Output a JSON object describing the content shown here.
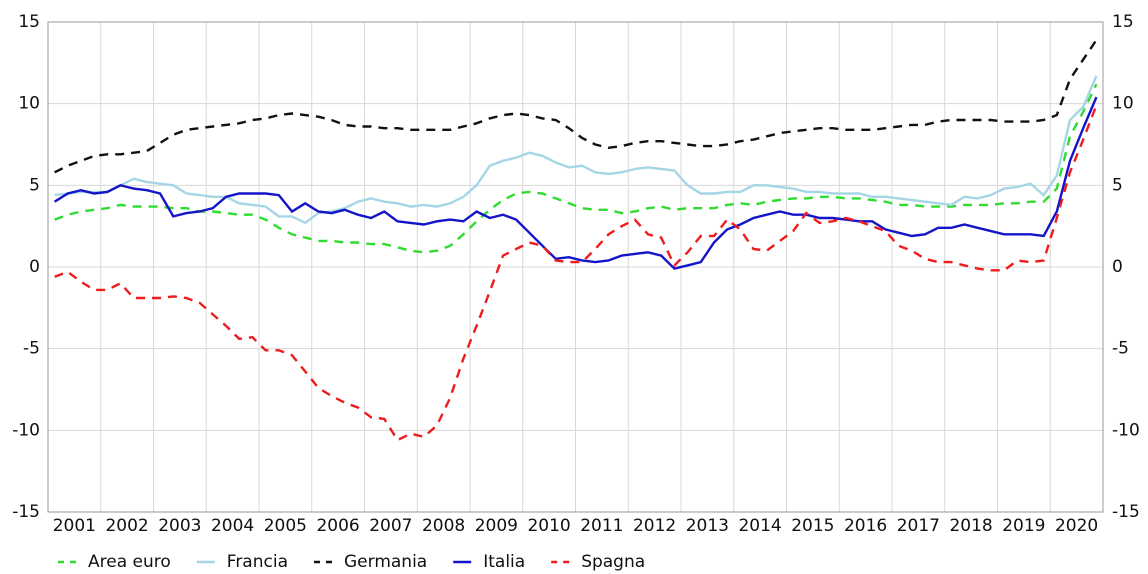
{
  "chart_data": {
    "type": "line",
    "categories": [
      null,
      "2001",
      null,
      null,
      null,
      "2002",
      null,
      null,
      null,
      "2003",
      null,
      null,
      null,
      "2004",
      null,
      null,
      null,
      "2005",
      null,
      null,
      null,
      "2006",
      null,
      null,
      null,
      "2007",
      null,
      null,
      null,
      "2008",
      null,
      null,
      null,
      "2009",
      null,
      null,
      null,
      "2010",
      null,
      null,
      null,
      "2011",
      null,
      null,
      null,
      "2012",
      null,
      null,
      null,
      "2013",
      null,
      null,
      null,
      "2014",
      null,
      null,
      null,
      "2015",
      null,
      null,
      null,
      "2016",
      null,
      null,
      null,
      "2017",
      null,
      null,
      null,
      "2018",
      null,
      null,
      null,
      "2019",
      null,
      null,
      null,
      "2020",
      null,
      null
    ],
    "series": [
      {
        "name": "Area euro",
        "color": "#2fdc2f",
        "dashed": true,
        "values": [
          2.9,
          3.2,
          3.4,
          3.5,
          3.6,
          3.8,
          3.7,
          3.7,
          3.7,
          3.6,
          3.6,
          3.4,
          3.4,
          3.3,
          3.2,
          3.2,
          2.9,
          2.4,
          2.0,
          1.8,
          1.6,
          1.6,
          1.5,
          1.5,
          1.4,
          1.4,
          1.2,
          1.0,
          0.9,
          1.0,
          1.3,
          2.0,
          2.8,
          3.5,
          4.1,
          4.5,
          4.6,
          4.5,
          4.2,
          3.9,
          3.6,
          3.5,
          3.5,
          3.3,
          3.4,
          3.6,
          3.7,
          3.5,
          3.6,
          3.6,
          3.6,
          3.8,
          3.9,
          3.8,
          4.0,
          4.1,
          4.2,
          4.2,
          4.3,
          4.3,
          4.2,
          4.2,
          4.1,
          4.0,
          3.8,
          3.8,
          3.7,
          3.7,
          3.7,
          3.8,
          3.8,
          3.8,
          3.9,
          3.9,
          4.0,
          4.0,
          4.8,
          8.0,
          9.5,
          11.2
        ]
      },
      {
        "name": "Francia",
        "color": "#a6d6e6",
        "dashed": false,
        "values": [
          4.4,
          4.5,
          4.6,
          4.6,
          4.6,
          5.0,
          5.4,
          5.2,
          5.1,
          5.0,
          4.5,
          4.4,
          4.3,
          4.3,
          3.9,
          3.8,
          3.7,
          3.1,
          3.1,
          2.7,
          3.3,
          3.4,
          3.6,
          4.0,
          4.2,
          4.0,
          3.9,
          3.7,
          3.8,
          3.7,
          3.9,
          4.3,
          5.0,
          6.2,
          6.5,
          6.7,
          7.0,
          6.8,
          6.4,
          6.1,
          6.2,
          5.8,
          5.7,
          5.8,
          6.0,
          6.1,
          6.0,
          5.9,
          5.0,
          4.5,
          4.5,
          4.6,
          4.6,
          5.0,
          5.0,
          4.9,
          4.8,
          4.6,
          4.6,
          4.5,
          4.5,
          4.5,
          4.3,
          4.3,
          4.2,
          4.1,
          4.0,
          3.9,
          3.8,
          4.3,
          4.2,
          4.4,
          4.8,
          4.9,
          5.1,
          4.4,
          5.6,
          9.0,
          9.8,
          11.7
        ]
      },
      {
        "name": "Germania",
        "color": "#111111",
        "dashed": true,
        "values": [
          5.8,
          6.2,
          6.5,
          6.8,
          6.9,
          6.9,
          7.0,
          7.1,
          7.6,
          8.1,
          8.4,
          8.5,
          8.6,
          8.7,
          8.8,
          9.0,
          9.1,
          9.3,
          9.4,
          9.3,
          9.2,
          9.0,
          8.7,
          8.6,
          8.6,
          8.5,
          8.5,
          8.4,
          8.4,
          8.4,
          8.4,
          8.6,
          8.8,
          9.1,
          9.3,
          9.4,
          9.3,
          9.1,
          9.0,
          8.5,
          7.9,
          7.5,
          7.3,
          7.4,
          7.6,
          7.7,
          7.7,
          7.6,
          7.5,
          7.4,
          7.4,
          7.5,
          7.7,
          7.8,
          8.0,
          8.2,
          8.3,
          8.4,
          8.5,
          8.5,
          8.4,
          8.4,
          8.4,
          8.5,
          8.6,
          8.7,
          8.7,
          8.9,
          9.0,
          9.0,
          9.0,
          9.0,
          8.9,
          8.9,
          8.9,
          9.0,
          9.3,
          11.5,
          12.7,
          13.9
        ]
      },
      {
        "name": "Italia",
        "color": "#1414c8",
        "dashed": false,
        "values": [
          4.0,
          4.5,
          4.7,
          4.5,
          4.6,
          5.0,
          4.8,
          4.7,
          4.5,
          3.1,
          3.3,
          3.4,
          3.6,
          4.3,
          4.5,
          4.5,
          4.5,
          4.4,
          3.4,
          3.9,
          3.4,
          3.3,
          3.5,
          3.2,
          3.0,
          3.4,
          2.8,
          2.7,
          2.6,
          2.8,
          2.9,
          2.8,
          3.4,
          3.0,
          3.2,
          2.9,
          2.1,
          1.3,
          0.5,
          0.6,
          0.4,
          0.3,
          0.4,
          0.7,
          0.8,
          0.9,
          0.7,
          -0.1,
          0.1,
          0.3,
          1.5,
          2.3,
          2.6,
          3.0,
          3.2,
          3.4,
          3.2,
          3.2,
          3.0,
          3.0,
          2.9,
          2.8,
          2.8,
          2.3,
          2.1,
          1.9,
          2.0,
          2.4,
          2.4,
          2.6,
          2.4,
          2.2,
          2.0,
          2.0,
          2.0,
          1.9,
          3.4,
          6.5,
          8.5,
          10.4
        ]
      },
      {
        "name": "Spagna",
        "color": "#ee1c1c",
        "dashed": true,
        "values": [
          -0.6,
          -0.3,
          -0.9,
          -1.4,
          -1.4,
          -1.0,
          -1.9,
          -1.9,
          -1.9,
          -1.8,
          -1.9,
          -2.2,
          -2.9,
          -3.6,
          -4.4,
          -4.3,
          -5.1,
          -5.1,
          -5.4,
          -6.4,
          -7.4,
          -7.9,
          -8.3,
          -8.6,
          -9.2,
          -9.3,
          -10.6,
          -10.2,
          -10.4,
          -9.7,
          -8.0,
          -5.6,
          -3.6,
          -1.5,
          0.7,
          1.1,
          1.5,
          1.3,
          0.4,
          0.3,
          0.3,
          1.1,
          2.0,
          2.5,
          2.9,
          2.0,
          1.8,
          0.1,
          0.9,
          1.9,
          1.9,
          2.9,
          2.3,
          1.1,
          1.0,
          1.6,
          2.2,
          3.3,
          2.7,
          2.8,
          3.0,
          2.8,
          2.5,
          2.2,
          1.3,
          1.0,
          0.5,
          0.3,
          0.3,
          0.1,
          -0.1,
          -0.2,
          -0.2,
          0.4,
          0.3,
          0.4,
          3.0,
          5.8,
          7.8,
          9.9
        ]
      }
    ],
    "ylim": [
      -15,
      15
    ],
    "yticks": [
      -15,
      -10,
      -5,
      0,
      5,
      10,
      15
    ],
    "grid": true,
    "legend": "bottom"
  }
}
